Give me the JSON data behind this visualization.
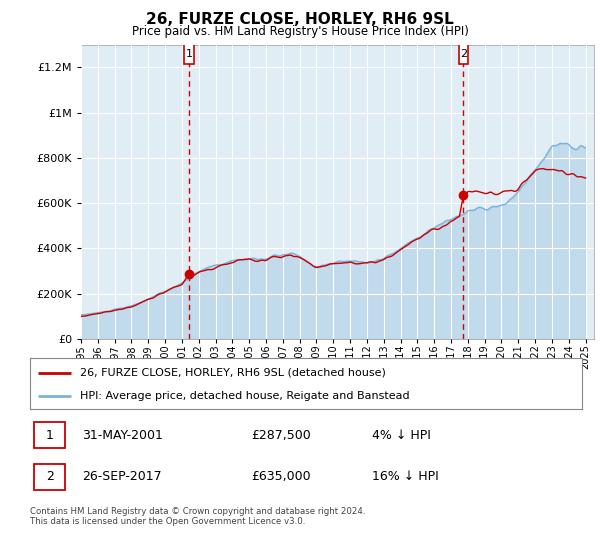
{
  "title": "26, FURZE CLOSE, HORLEY, RH6 9SL",
  "subtitle": "Price paid vs. HM Land Registry's House Price Index (HPI)",
  "legend_line1": "26, FURZE CLOSE, HORLEY, RH6 9SL (detached house)",
  "legend_line2": "HPI: Average price, detached house, Reigate and Banstead",
  "footer": "Contains HM Land Registry data © Crown copyright and database right 2024.\nThis data is licensed under the Open Government Licence v3.0.",
  "hpi_color": "#7ab4d8",
  "price_color": "#cc0000",
  "background_color": "#e0edf5",
  "ylim": [
    0,
    1300000
  ],
  "xlim_start": 1995.0,
  "xlim_end": 2025.5,
  "yticks": [
    0,
    200000,
    400000,
    600000,
    800000,
    1000000,
    1200000
  ],
  "sale1_x": 2001.42,
  "sale1_y": 287500,
  "sale2_x": 2017.74,
  "sale2_y": 635000,
  "ann1_date": "31-MAY-2001",
  "ann1_price": "£287,500",
  "ann1_note": "4% ↓ HPI",
  "ann2_date": "26-SEP-2017",
  "ann2_price": "£635,000",
  "ann2_note": "16% ↓ HPI"
}
